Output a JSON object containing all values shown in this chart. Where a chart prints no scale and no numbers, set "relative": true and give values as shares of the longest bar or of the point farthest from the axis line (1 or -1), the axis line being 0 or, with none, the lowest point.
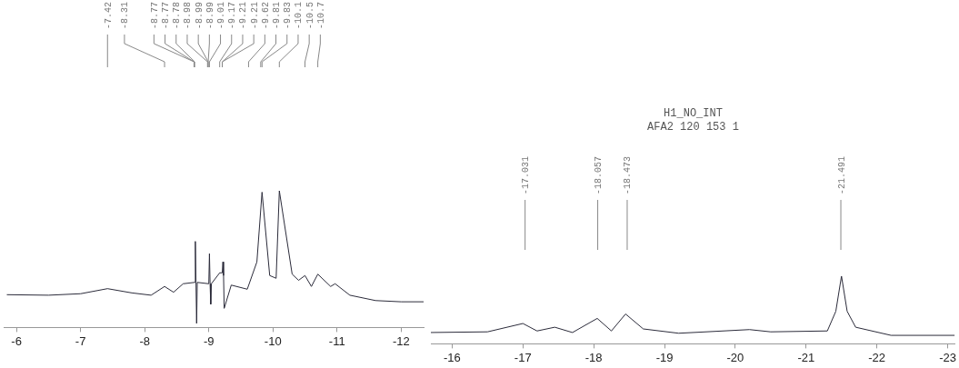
{
  "chart_data": [
    {
      "type": "line",
      "relative": true,
      "xlim": [
        -5.8,
        -12.35
      ],
      "xticks": [
        -6,
        -7,
        -8,
        -9,
        -10,
        -11,
        -12
      ],
      "grid": false,
      "legend": false,
      "marker": "none",
      "tick_labels": "x",
      "x": [
        -5.85,
        -6.5,
        -7.0,
        -7.42,
        -7.8,
        -8.1,
        -8.31,
        -8.45,
        -8.6,
        -8.78,
        -8.79,
        -8.8,
        -8.81,
        -8.82,
        -9.0,
        -9.01,
        -9.02,
        -9.03,
        -9.04,
        -9.17,
        -9.21,
        -9.22,
        -9.23,
        -9.24,
        -9.35,
        -9.6,
        -9.75,
        -9.83,
        -9.95,
        -10.05,
        -10.1,
        -10.3,
        -10.4,
        -10.5,
        -10.6,
        -10.7,
        -10.9,
        -10.97,
        -11.2,
        -11.6,
        -12.0,
        -12.35
      ],
      "series": [
        {
          "color": "#2b2b3a",
          "values": [
            0.24,
            0.236,
            0.247,
            0.284,
            0.253,
            0.236,
            0.3,
            0.258,
            0.32,
            0.33,
            0.63,
            0.33,
            0.03,
            0.33,
            0.32,
            0.54,
            0.32,
            0.17,
            0.32,
            0.4,
            0.4,
            0.48,
            0.38,
            0.14,
            0.31,
            0.28,
            0.48,
            0.99,
            0.38,
            0.36,
            1.0,
            0.39,
            0.345,
            0.38,
            0.3,
            0.39,
            0.3,
            0.32,
            0.236,
            0.197,
            0.188,
            0.188
          ]
        }
      ],
      "annotations": [
        {
          "text": "-7.42",
          "x": -7.42
        },
        {
          "text": "-8.31",
          "x": -8.31
        },
        {
          "text": "-8.77",
          "x": -8.77
        },
        {
          "text": "-8.77",
          "x": -8.77
        },
        {
          "text": "-8.78",
          "x": -8.78
        },
        {
          "text": "-8.98",
          "x": -8.98
        },
        {
          "text": "-8.99",
          "x": -8.99
        },
        {
          "text": "-8.99",
          "x": -8.99
        },
        {
          "text": "-9.01",
          "x": -9.01
        },
        {
          "text": "-9.17",
          "x": -9.17
        },
        {
          "text": "-9.21",
          "x": -9.21
        },
        {
          "text": "-9.21",
          "x": -9.21
        },
        {
          "text": "-9.62",
          "x": -9.62
        },
        {
          "text": "-9.81",
          "x": -9.81
        },
        {
          "text": "-9.83",
          "x": -9.83
        },
        {
          "text": "-10.1",
          "x": -10.1
        },
        {
          "text": "-10.5",
          "x": -10.5
        },
        {
          "text": "-10.7",
          "x": -10.7
        }
      ]
    },
    {
      "type": "line",
      "relative": true,
      "title": "H1_NO_INT",
      "subtitle": "AFA2 120 153 1",
      "xlim": [
        -15.7,
        -23.1
      ],
      "xticks": [
        -16,
        -17,
        -18,
        -19,
        -20,
        -21,
        -22,
        -23
      ],
      "grid": false,
      "legend": false,
      "marker": "none",
      "tick_labels": "x",
      "x": [
        -15.7,
        -16.5,
        -17.0,
        -17.2,
        -17.45,
        -17.7,
        -18.05,
        -18.25,
        -18.45,
        -18.7,
        -19.2,
        -20.2,
        -20.5,
        -21.3,
        -21.42,
        -21.5,
        -21.58,
        -21.7,
        -22.2,
        -23.1
      ],
      "series": [
        {
          "color": "#2b2b3a",
          "values": [
            0.167,
            0.177,
            0.3,
            0.19,
            0.245,
            0.167,
            0.375,
            0.19,
            0.44,
            0.22,
            0.156,
            0.21,
            0.177,
            0.19,
            0.48,
            1.0,
            0.48,
            0.245,
            0.125,
            0.125
          ]
        }
      ],
      "annotations": [
        {
          "text": "-17.031",
          "x": -17.031
        },
        {
          "text": "-18.057",
          "x": -18.057
        },
        {
          "text": "-18.473",
          "x": -18.473
        },
        {
          "text": "-21.491",
          "x": -21.491
        }
      ]
    }
  ]
}
